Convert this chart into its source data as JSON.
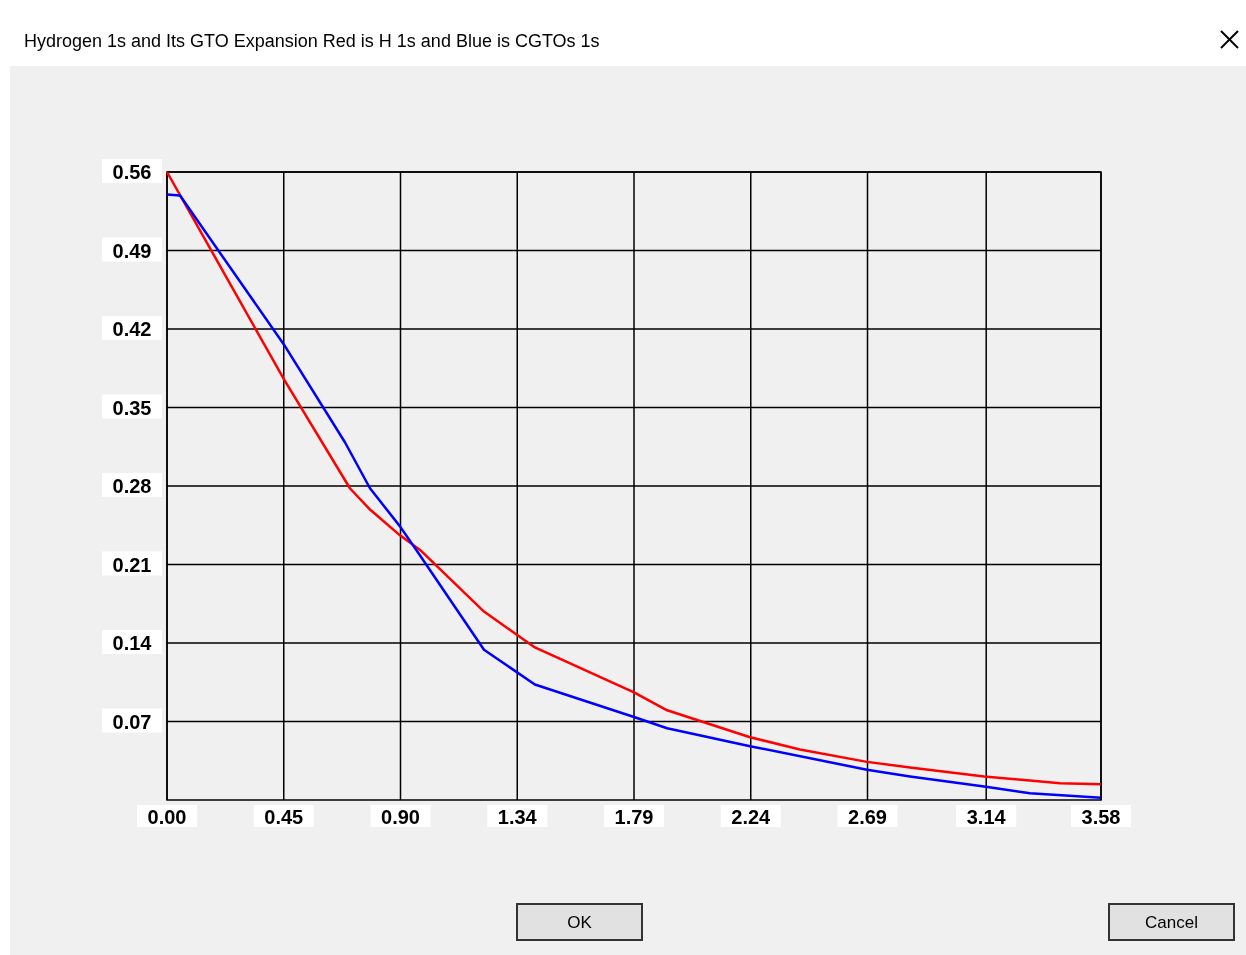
{
  "chart_data": {
    "type": "line",
    "title": "Hydrogen 1s and Its GTO Expansion Red is H 1s and Blue is CGTOs 1s",
    "series": [
      {
        "color": "#ff0000",
        "x": [
          0,
          0.4485,
          0.701,
          0.778,
          0.893,
          0.97,
          1.215,
          1.41,
          1.79,
          1.917,
          2.235,
          2.426,
          2.683,
          2.848,
          3.132,
          3.423,
          3.58
        ],
        "values": [
          0.56,
          0.375,
          0.278,
          0.259,
          0.236,
          0.223,
          0.168,
          0.136,
          0.096,
          0.08,
          0.056,
          0.045,
          0.034,
          0.029,
          0.021,
          0.015,
          0.014
        ]
      },
      {
        "color": "#0000ff",
        "x": [
          0,
          0.05,
          0.4485,
          0.682,
          0.778,
          0.893,
          0.97,
          1.215,
          1.41,
          1.79,
          1.917,
          2.235,
          2.683,
          2.848,
          3.132,
          3.308,
          3.58
        ],
        "values": [
          0.54,
          0.539,
          0.406,
          0.319,
          0.278,
          0.244,
          0.218,
          0.134,
          0.103,
          0.074,
          0.064,
          0.048,
          0.027,
          0.021,
          0.012,
          0.006,
          0.002
        ]
      }
    ],
    "xlim": [
      0,
      3.58
    ],
    "xticks": [
      {
        "value": 0,
        "label": "0.00"
      },
      {
        "value": 0.4475,
        "label": "0.45"
      },
      {
        "value": 0.895,
        "label": "0.90"
      },
      {
        "value": 1.3425,
        "label": "1.34"
      },
      {
        "value": 1.79,
        "label": "1.79"
      },
      {
        "value": 2.2375,
        "label": "2.24"
      },
      {
        "value": 2.685,
        "label": "2.69"
      },
      {
        "value": 3.14,
        "label": "3.14"
      },
      {
        "value": 3.58,
        "label": "3.58"
      }
    ],
    "ylim": [
      0,
      0.56
    ],
    "yticks": [
      0.07,
      0.14,
      0.21,
      0.28,
      0.35,
      0.42,
      0.49,
      0.56
    ],
    "grid": true,
    "annotations": [
      "OK",
      "Cancel"
    ]
  }
}
